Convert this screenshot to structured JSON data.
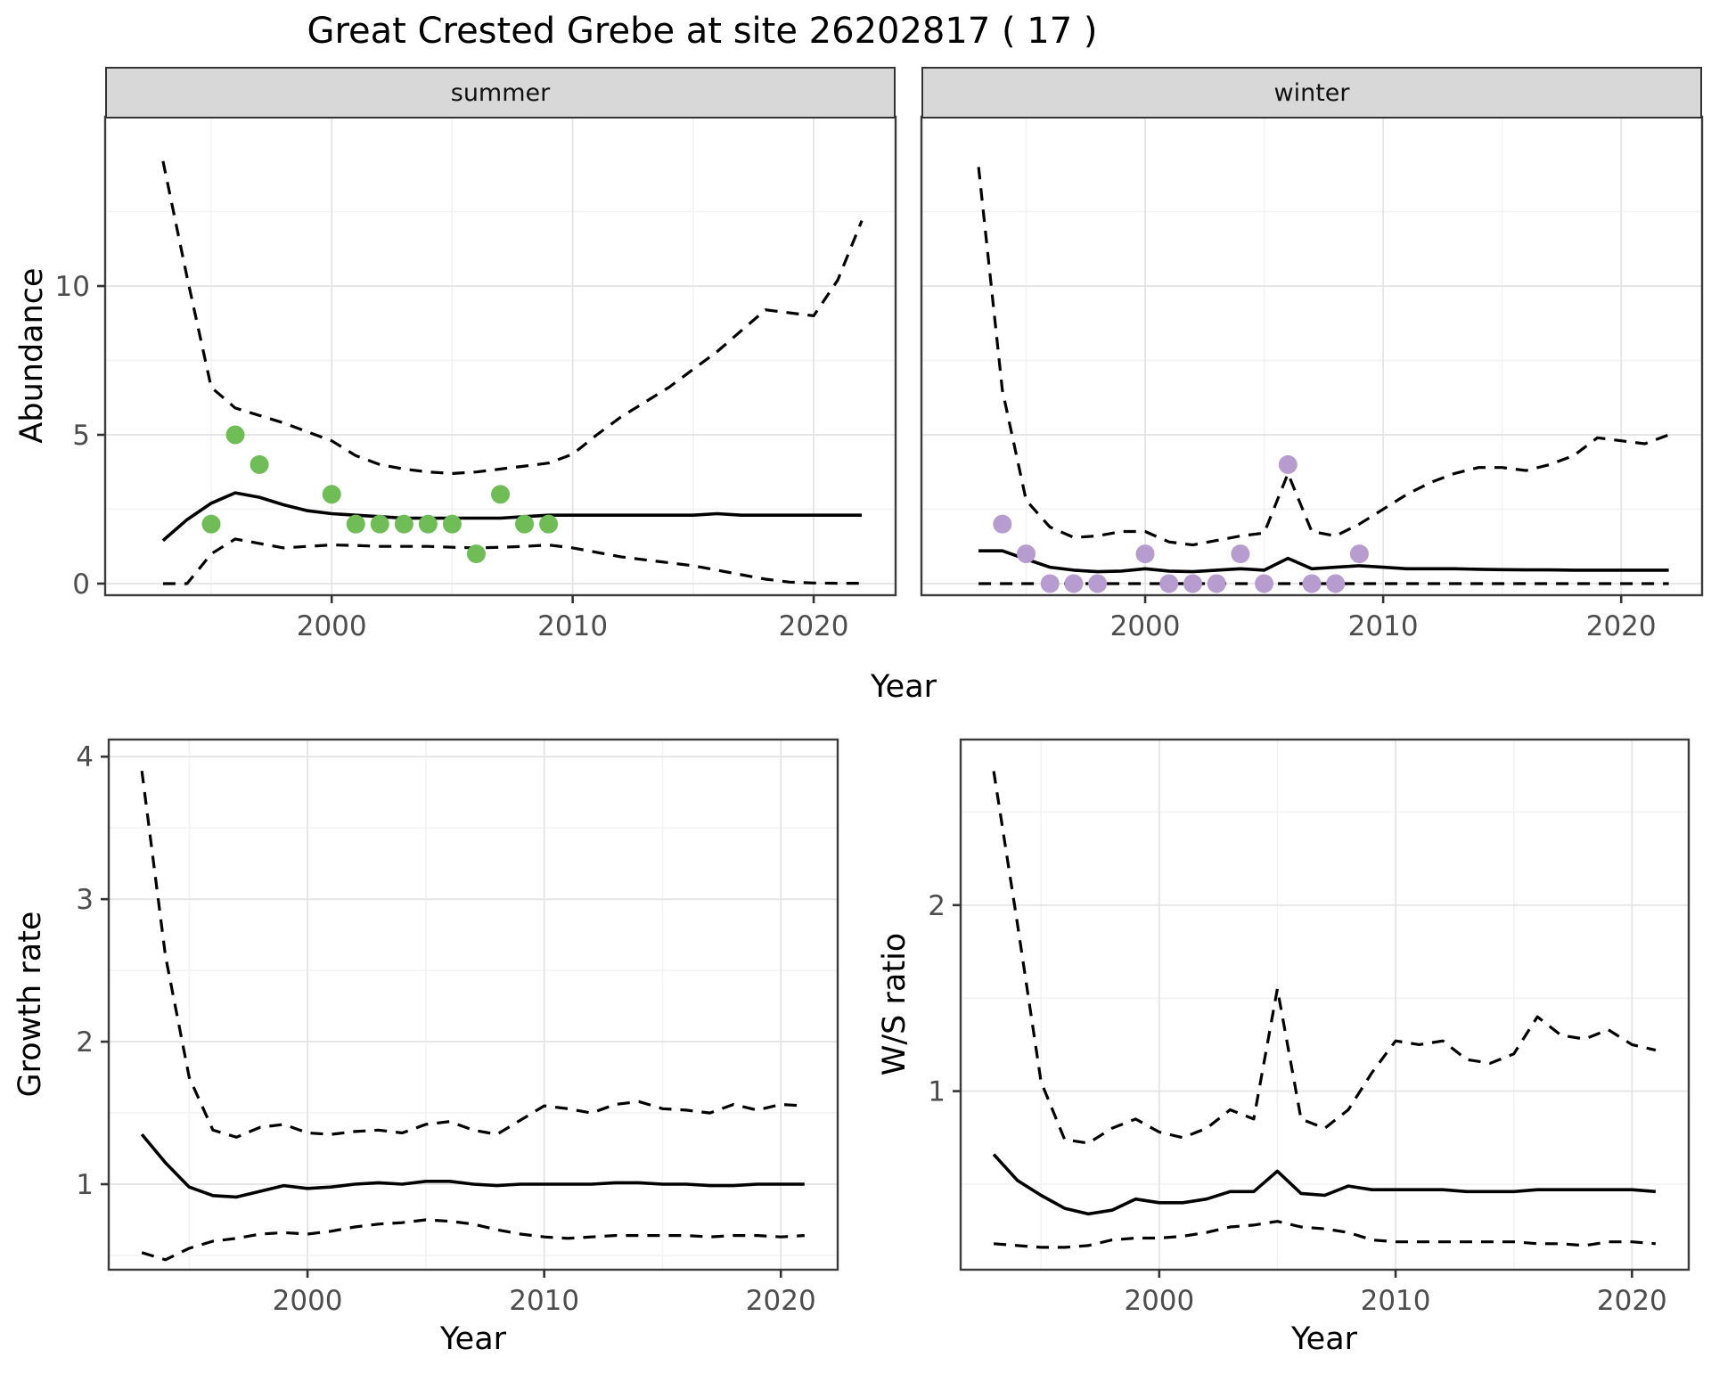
{
  "title": "Great Crested Grebe at site 26202817 ( 17 )",
  "facets": {
    "summer_label": "summer",
    "winter_label": "winter"
  },
  "axis_titles": {
    "abundance": "Abundance",
    "growth": "Growth rate",
    "ws": "W/S ratio",
    "year": "Year"
  },
  "colors": {
    "summer_points": "#70bd58",
    "winter_points": "#b79ccf",
    "line": "#000000",
    "strip_bg": "#d8d8d8",
    "grid_major": "#e5e5e5",
    "grid_minor": "#f2f2f2",
    "border": "#3c3c3c",
    "tick_mark": "#333333",
    "tick_text": "#4d4d4d"
  },
  "chart_data": [
    {
      "id": "abundance_summer",
      "type": "line",
      "facet_label": "summer",
      "xlabel": "Year",
      "ylabel": "Abundance",
      "x": [
        1993,
        1994,
        1995,
        1996,
        1997,
        1998,
        1999,
        2000,
        2001,
        2002,
        2003,
        2004,
        2005,
        2006,
        2007,
        2008,
        2009,
        2010,
        2011,
        2012,
        2013,
        2014,
        2015,
        2016,
        2017,
        2018,
        2019,
        2020,
        2021,
        2022
      ],
      "series": [
        {
          "name": "median",
          "style": "solid",
          "values": [
            1.45,
            2.15,
            2.7,
            3.05,
            2.9,
            2.65,
            2.45,
            2.35,
            2.3,
            2.25,
            2.2,
            2.2,
            2.2,
            2.2,
            2.2,
            2.25,
            2.3,
            2.3,
            2.3,
            2.3,
            2.3,
            2.3,
            2.3,
            2.35,
            2.3,
            2.3,
            2.3,
            2.3,
            2.3,
            2.3
          ]
        },
        {
          "name": "upper_ci",
          "style": "dashed",
          "values": [
            14.2,
            10.3,
            6.6,
            5.9,
            5.65,
            5.4,
            5.1,
            4.8,
            4.3,
            4.0,
            3.85,
            3.75,
            3.7,
            3.75,
            3.85,
            3.95,
            4.05,
            4.35,
            5.0,
            5.6,
            6.1,
            6.6,
            7.2,
            7.8,
            8.5,
            9.2,
            9.1,
            9.0,
            10.2,
            12.2
          ]
        },
        {
          "name": "lower_ci",
          "style": "dashed",
          "values": [
            0,
            0,
            1.0,
            1.5,
            1.35,
            1.2,
            1.25,
            1.3,
            1.28,
            1.25,
            1.25,
            1.25,
            1.22,
            1.2,
            1.22,
            1.25,
            1.3,
            1.2,
            1.05,
            0.9,
            0.8,
            0.7,
            0.6,
            0.45,
            0.3,
            0.15,
            0.05,
            0.02,
            0.01,
            0.01
          ]
        }
      ],
      "points": {
        "name": "summer-observations",
        "color": "#70bd58",
        "x": [
          1995,
          1996,
          1997,
          2000,
          2001,
          2002,
          2003,
          2004,
          2005,
          2006,
          2007,
          2008,
          2009
        ],
        "y": [
          2,
          5,
          4,
          3,
          2,
          2,
          2,
          2,
          2,
          1,
          3,
          2,
          2
        ]
      },
      "xlim": [
        1990.6,
        2023.4
      ],
      "ylim": [
        -0.39,
        15.69
      ],
      "xticks": [
        2000,
        2010,
        2020
      ],
      "xticks_minor": [
        1995,
        2005,
        2015
      ],
      "yticks": [
        0,
        5,
        10
      ],
      "yticks_minor": [
        2.5,
        7.5,
        12.5
      ],
      "show_ytick_labels": true,
      "grid": true,
      "legend": "none"
    },
    {
      "id": "abundance_winter",
      "type": "line",
      "facet_label": "winter",
      "xlabel": "Year",
      "ylabel": "Abundance",
      "x": [
        1993,
        1994,
        1995,
        1996,
        1997,
        1998,
        1999,
        2000,
        2001,
        2002,
        2003,
        2004,
        2005,
        2006,
        2007,
        2008,
        2009,
        2010,
        2011,
        2012,
        2013,
        2014,
        2015,
        2016,
        2017,
        2018,
        2019,
        2020,
        2021,
        2022
      ],
      "series": [
        {
          "name": "median",
          "style": "solid",
          "values": [
            1.1,
            1.1,
            0.82,
            0.55,
            0.45,
            0.4,
            0.42,
            0.5,
            0.42,
            0.4,
            0.45,
            0.5,
            0.45,
            0.85,
            0.5,
            0.55,
            0.6,
            0.55,
            0.5,
            0.5,
            0.5,
            0.48,
            0.47,
            0.46,
            0.46,
            0.45,
            0.45,
            0.45,
            0.45,
            0.45
          ]
        },
        {
          "name": "upper_ci",
          "style": "dashed",
          "values": [
            14.0,
            6.5,
            2.8,
            1.9,
            1.55,
            1.6,
            1.75,
            1.75,
            1.4,
            1.3,
            1.45,
            1.6,
            1.7,
            3.7,
            1.75,
            1.6,
            2.0,
            2.5,
            3.0,
            3.4,
            3.7,
            3.9,
            3.9,
            3.8,
            4.0,
            4.3,
            4.9,
            4.8,
            4.7,
            5.0
          ]
        },
        {
          "name": "lower_ci",
          "style": "dashed",
          "values": [
            0,
            0,
            0,
            0,
            0,
            0,
            0,
            0,
            0,
            0,
            0,
            0,
            0,
            0,
            0,
            0,
            0,
            0,
            0,
            0,
            0,
            0,
            0,
            0,
            0,
            0,
            0,
            0,
            0,
            0
          ]
        }
      ],
      "points": {
        "name": "winter-observations",
        "color": "#b79ccf",
        "x": [
          1994,
          1995,
          1996,
          1997,
          1998,
          2000,
          2001,
          2002,
          2003,
          2004,
          2005,
          2006,
          2007,
          2008,
          2009
        ],
        "y": [
          2,
          1,
          0,
          0,
          0,
          1,
          0,
          0,
          0,
          1,
          0,
          4,
          0,
          0,
          1
        ]
      },
      "xlim": [
        1990.6,
        2023.4
      ],
      "ylim": [
        -0.39,
        15.69
      ],
      "xticks": [
        2000,
        2010,
        2020
      ],
      "xticks_minor": [
        1995,
        2005,
        2015
      ],
      "yticks": [
        0,
        5,
        10
      ],
      "yticks_minor": [
        2.5,
        7.5,
        12.5
      ],
      "show_ytick_labels": false,
      "grid": true,
      "legend": "none"
    },
    {
      "id": "growth_rate",
      "type": "line",
      "facet_label": "",
      "xlabel": "Year",
      "ylabel": "Growth rate",
      "x": [
        1993,
        1994,
        1995,
        1996,
        1997,
        1998,
        1999,
        2000,
        2001,
        2002,
        2003,
        2004,
        2005,
        2006,
        2007,
        2008,
        2009,
        2010,
        2011,
        2012,
        2013,
        2014,
        2015,
        2016,
        2017,
        2018,
        2019,
        2020,
        2021
      ],
      "series": [
        {
          "name": "median",
          "style": "solid",
          "values": [
            1.35,
            1.15,
            0.98,
            0.92,
            0.91,
            0.95,
            0.99,
            0.97,
            0.98,
            1.0,
            1.01,
            1.0,
            1.02,
            1.02,
            1.0,
            0.99,
            1.0,
            1.0,
            1.0,
            1.0,
            1.01,
            1.01,
            1.0,
            1.0,
            0.99,
            0.99,
            1.0,
            1.0,
            1.0
          ]
        },
        {
          "name": "upper_ci",
          "style": "dashed",
          "values": [
            3.9,
            2.6,
            1.75,
            1.38,
            1.33,
            1.4,
            1.42,
            1.36,
            1.35,
            1.37,
            1.38,
            1.36,
            1.42,
            1.44,
            1.38,
            1.35,
            1.45,
            1.55,
            1.53,
            1.5,
            1.56,
            1.58,
            1.53,
            1.52,
            1.5,
            1.56,
            1.52,
            1.56,
            1.55
          ]
        },
        {
          "name": "lower_ci",
          "style": "dashed",
          "values": [
            0.52,
            0.47,
            0.55,
            0.6,
            0.62,
            0.65,
            0.66,
            0.65,
            0.67,
            0.7,
            0.72,
            0.73,
            0.75,
            0.74,
            0.72,
            0.68,
            0.65,
            0.63,
            0.62,
            0.63,
            0.64,
            0.64,
            0.64,
            0.64,
            0.63,
            0.64,
            0.64,
            0.63,
            0.64
          ]
        }
      ],
      "points": null,
      "xlim": [
        1991.6,
        2022.4
      ],
      "ylim": [
        0.4,
        4.12
      ],
      "xticks": [
        2000,
        2010,
        2020
      ],
      "xticks_minor": [
        1995,
        2005,
        2015
      ],
      "yticks": [
        1,
        2,
        3,
        4
      ],
      "yticks_minor": [
        0.5,
        1.5,
        2.5,
        3.5
      ],
      "show_ytick_labels": true,
      "grid": true,
      "legend": "none"
    },
    {
      "id": "ws_ratio",
      "type": "line",
      "facet_label": "",
      "xlabel": "Year",
      "ylabel": "W/S ratio",
      "x": [
        1993,
        1994,
        1995,
        1996,
        1997,
        1998,
        1999,
        2000,
        2001,
        2002,
        2003,
        2004,
        2005,
        2006,
        2007,
        2008,
        2009,
        2010,
        2011,
        2012,
        2013,
        2014,
        2015,
        2016,
        2017,
        2018,
        2019,
        2020,
        2021
      ],
      "series": [
        {
          "name": "median",
          "style": "solid",
          "values": [
            0.66,
            0.52,
            0.44,
            0.37,
            0.34,
            0.36,
            0.42,
            0.4,
            0.4,
            0.42,
            0.46,
            0.46,
            0.57,
            0.45,
            0.44,
            0.49,
            0.47,
            0.47,
            0.47,
            0.47,
            0.46,
            0.46,
            0.46,
            0.47,
            0.47,
            0.47,
            0.47,
            0.47,
            0.46
          ]
        },
        {
          "name": "upper_ci",
          "style": "dashed",
          "values": [
            2.72,
            1.9,
            1.05,
            0.74,
            0.72,
            0.8,
            0.85,
            0.78,
            0.75,
            0.8,
            0.9,
            0.85,
            1.55,
            0.85,
            0.8,
            0.9,
            1.1,
            1.27,
            1.25,
            1.27,
            1.17,
            1.15,
            1.2,
            1.4,
            1.3,
            1.28,
            1.33,
            1.25,
            1.22
          ]
        },
        {
          "name": "lower_ci",
          "style": "dashed",
          "values": [
            0.18,
            0.17,
            0.16,
            0.16,
            0.17,
            0.2,
            0.21,
            0.21,
            0.22,
            0.24,
            0.27,
            0.28,
            0.3,
            0.27,
            0.26,
            0.24,
            0.2,
            0.19,
            0.19,
            0.19,
            0.19,
            0.19,
            0.19,
            0.18,
            0.18,
            0.17,
            0.19,
            0.19,
            0.18
          ]
        }
      ],
      "points": null,
      "xlim": [
        1991.6,
        2022.4
      ],
      "ylim": [
        0.04,
        2.89
      ],
      "xticks": [
        2000,
        2010,
        2020
      ],
      "xticks_minor": [
        1995,
        2005,
        2015
      ],
      "yticks": [
        1,
        2
      ],
      "yticks_minor": [
        0.5,
        1.5,
        2.5
      ],
      "show_ytick_labels": true,
      "grid": true,
      "legend": "none"
    }
  ]
}
